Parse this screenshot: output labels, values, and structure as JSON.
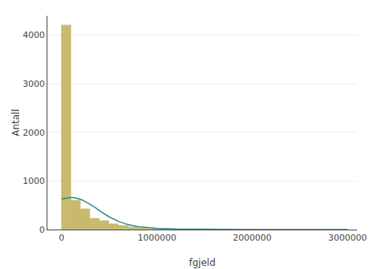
{
  "chart_data": {
    "type": "histogram",
    "xlabel": "fgjeld",
    "ylabel": "Antall",
    "color": "#c8b96e",
    "bins": [
      0,
      100000,
      200000,
      300000,
      400000,
      500000,
      600000,
      700000,
      800000,
      900000,
      1000000,
      1100000,
      1200000,
      1300000,
      1400000,
      1500000,
      1600000,
      1700000,
      1800000,
      1900000,
      2000000,
      2100000,
      2200000,
      2300000,
      2400000,
      2500000,
      2600000,
      2700000,
      2800000,
      2900000,
      3000000
    ],
    "values": [
      4200,
      600,
      430,
      230,
      180,
      120,
      75,
      50,
      30,
      20,
      12,
      8,
      6,
      5,
      4,
      3,
      2,
      2,
      1,
      1,
      1,
      0,
      0,
      0,
      0,
      0,
      0,
      0,
      0,
      0
    ],
    "series": [
      {
        "type": "line",
        "color": "#2e8b8b",
        "x": [
          0,
          50000,
          100000,
          150000,
          200000,
          250000,
          300000,
          350000,
          400000,
          500000,
          600000,
          700000,
          800000,
          900000,
          1000000,
          1200000,
          1500000,
          2000000,
          2500000,
          3000000
        ],
        "values": [
          630,
          650,
          660,
          650,
          620,
          575,
          520,
          455,
          385,
          260,
          165,
          100,
          60,
          38,
          25,
          12,
          5,
          2,
          0.5,
          0.1
        ]
      }
    ],
    "xlim": [
      -150000,
      3100000
    ],
    "ylim": [
      0,
      4400
    ],
    "xticks": [
      0,
      1000000,
      2000000,
      3000000
    ],
    "yticks": [
      0,
      1000,
      2000,
      3000,
      4000
    ],
    "grid": "y"
  }
}
